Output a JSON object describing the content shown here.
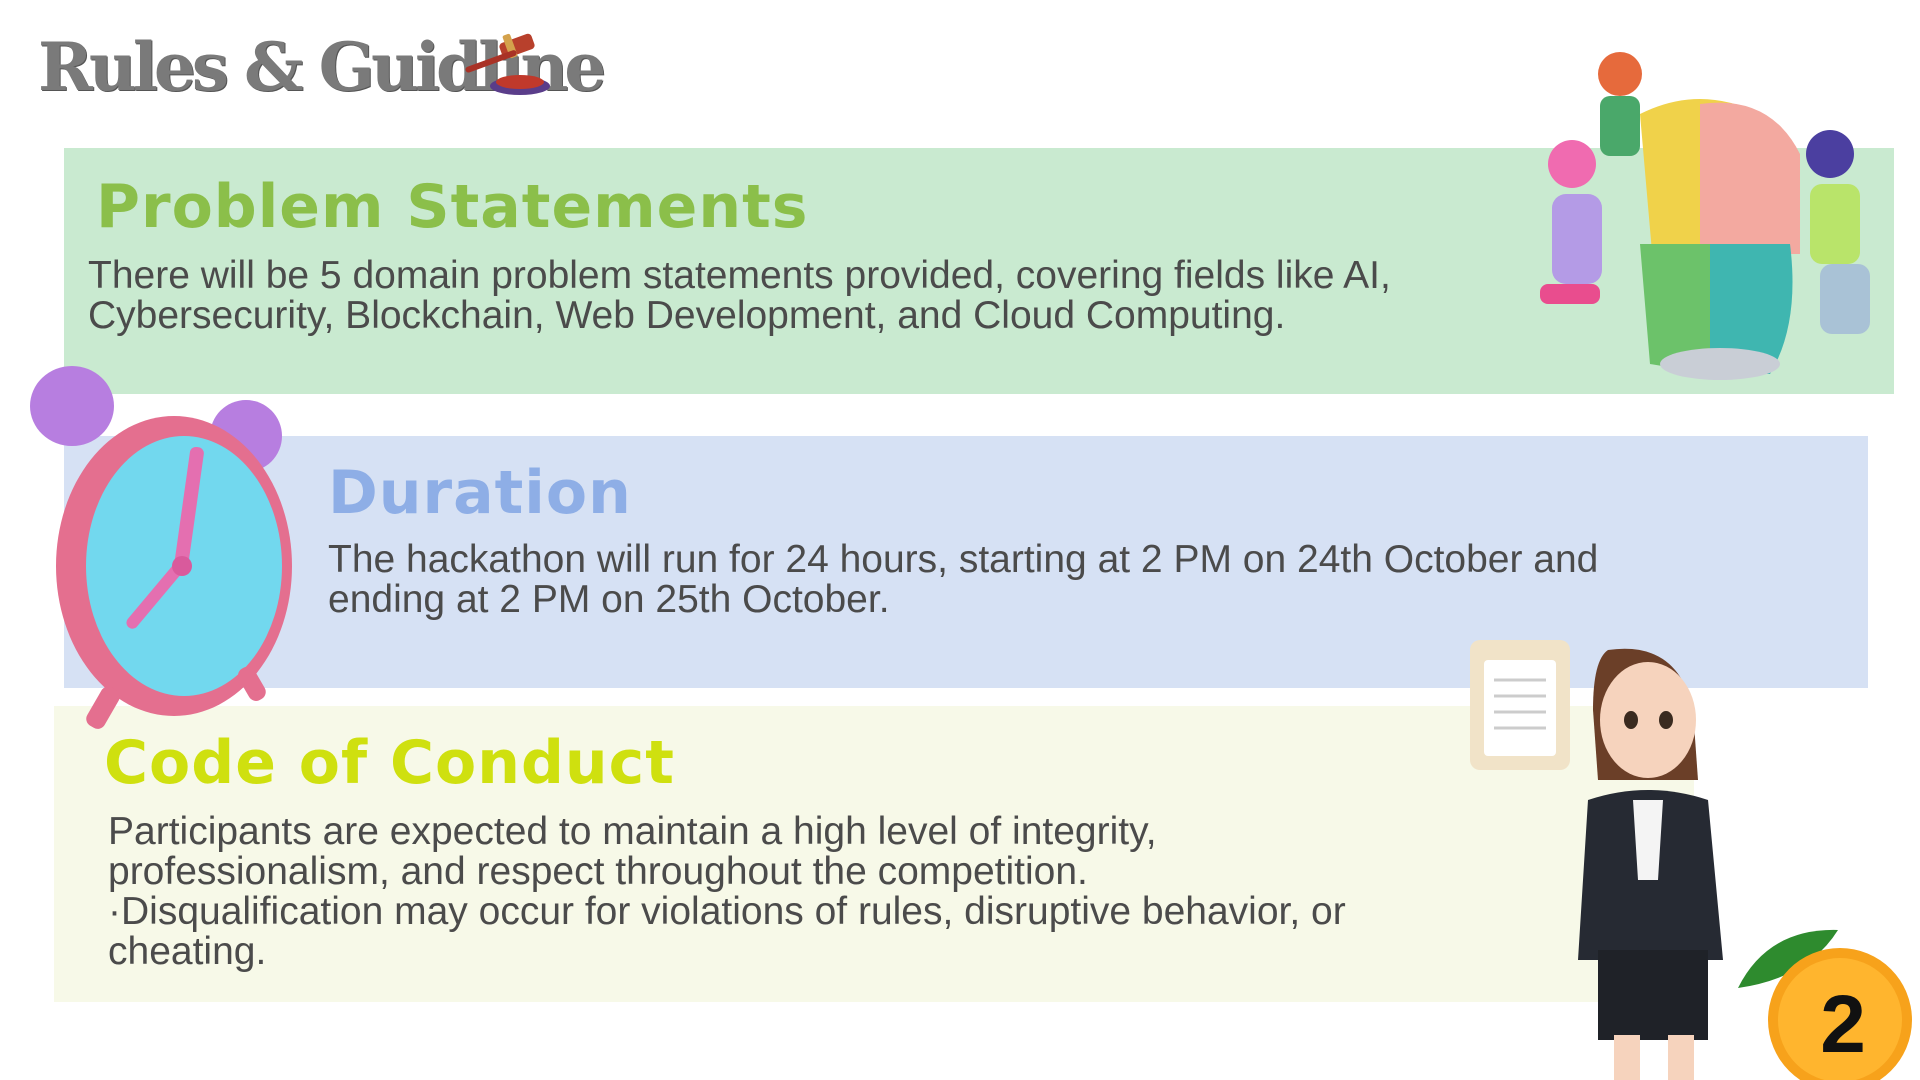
{
  "header": {
    "title": "Rules & Guidline",
    "icon": "gavel-icon"
  },
  "sections": [
    {
      "heading": "Problem Statements",
      "text": "There will be 5 domain problem statements provided, covering fields like AI, Cybersecurity, Blockchain, Web Development, and Cloud Computing.",
      "color": "#c9ead0",
      "heading_color": "#8bbf4a",
      "illustration": "puzzle-team-illustration"
    },
    {
      "heading": "Duration",
      "text": "The hackathon will run for 24 hours, starting at 2 PM on 24th October and ending at 2 PM on 25th October.",
      "color": "#d6e1f4",
      "heading_color": "#8eaee6",
      "illustration": "alarm-clock-illustration"
    },
    {
      "heading": "Code of Conduct",
      "text_lines": [
        "Participants are expected to maintain a high level of integrity, professionalism, and respect throughout the competition.",
        "·Disqualification may occur for violations of rules, disruptive behavior, or cheating."
      ],
      "color": "#f7f9e8",
      "heading_color": "#cfe00f",
      "illustration": "woman-with-clipboard-illustration"
    }
  ],
  "page_number": "2"
}
